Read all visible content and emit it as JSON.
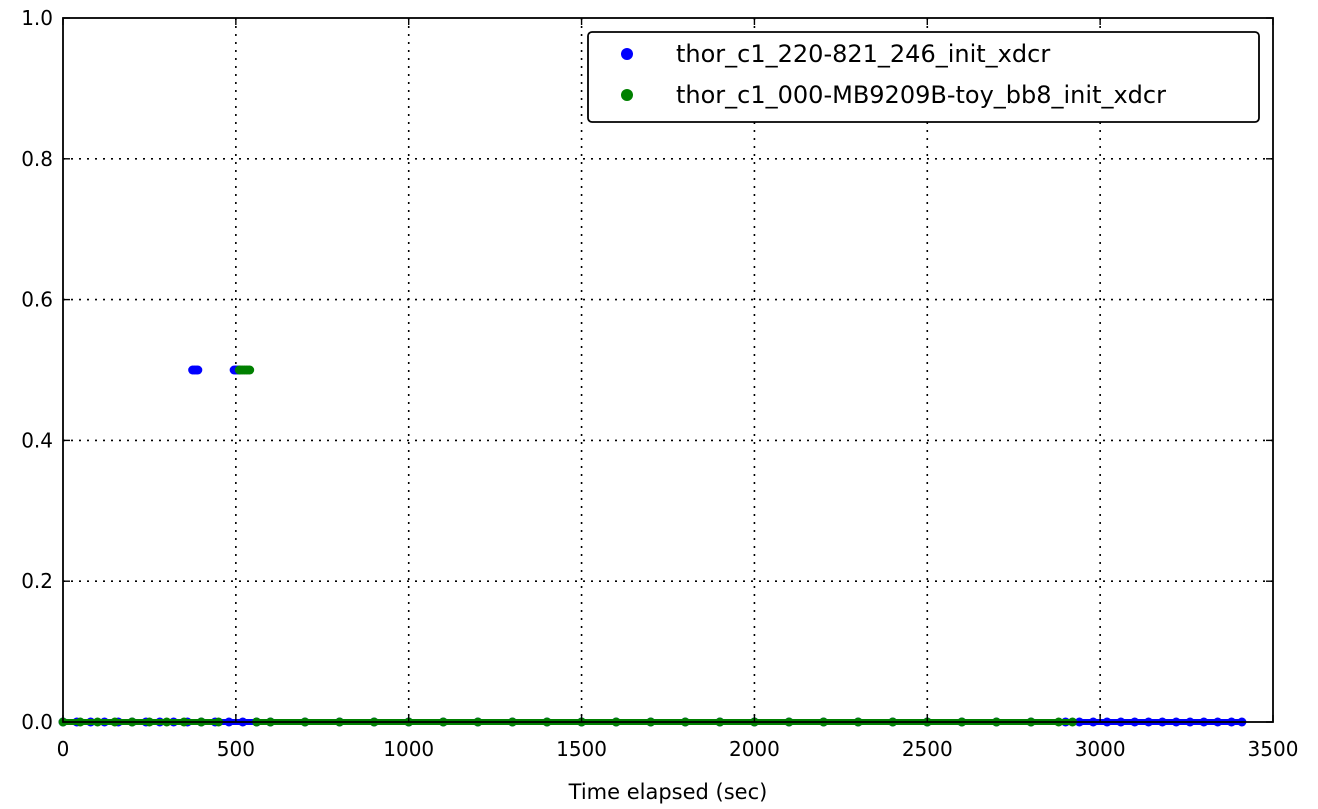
{
  "chart_data": {
    "type": "scatter",
    "title": "",
    "xlabel": "Time elapsed (sec)",
    "ylabel": "",
    "xlim": [
      0,
      3500
    ],
    "ylim": [
      0,
      1.0
    ],
    "grid": true,
    "legend_position": "top-right",
    "x_ticks": [
      0,
      500,
      1000,
      1500,
      2000,
      2500,
      3000,
      3500
    ],
    "x_tick_labels": [
      "0",
      "500",
      "1000",
      "1500",
      "2000",
      "2500",
      "3000",
      "3500"
    ],
    "y_ticks": [
      0.0,
      0.2,
      0.4,
      0.6,
      0.8,
      1.0
    ],
    "y_tick_labels": [
      "0.0",
      "0.2",
      "0.4",
      "0.6",
      "0.8",
      "1.0"
    ],
    "series": [
      {
        "name": "thor_c1_220-821_246_init_xdcr",
        "color": "#0000ff",
        "points": [
          [
            0,
            0
          ],
          [
            40,
            0
          ],
          [
            80,
            0
          ],
          [
            120,
            0
          ],
          [
            160,
            0
          ],
          [
            200,
            0
          ],
          [
            240,
            0
          ],
          [
            280,
            0
          ],
          [
            320,
            0
          ],
          [
            360,
            0
          ],
          [
            375,
            0.5
          ],
          [
            380,
            0.5
          ],
          [
            385,
            0.5
          ],
          [
            390,
            0.5
          ],
          [
            495,
            0.5
          ],
          [
            500,
            0.5
          ],
          [
            505,
            0.5
          ],
          [
            510,
            0.5
          ],
          [
            400,
            0
          ],
          [
            440,
            0
          ],
          [
            480,
            0
          ],
          [
            520,
            0
          ],
          [
            560,
            0
          ],
          [
            600,
            0
          ],
          [
            700,
            0
          ],
          [
            800,
            0
          ],
          [
            900,
            0
          ],
          [
            1000,
            0
          ],
          [
            1100,
            0
          ],
          [
            1200,
            0
          ],
          [
            1300,
            0
          ],
          [
            1400,
            0
          ],
          [
            1500,
            0
          ],
          [
            1600,
            0
          ],
          [
            1700,
            0
          ],
          [
            1800,
            0
          ],
          [
            1900,
            0
          ],
          [
            2000,
            0
          ],
          [
            2100,
            0
          ],
          [
            2200,
            0
          ],
          [
            2300,
            0
          ],
          [
            2400,
            0
          ],
          [
            2500,
            0
          ],
          [
            2600,
            0
          ],
          [
            2700,
            0
          ],
          [
            2800,
            0
          ],
          [
            2900,
            0
          ],
          [
            2940,
            0
          ],
          [
            2980,
            0
          ],
          [
            3020,
            0
          ],
          [
            3060,
            0
          ],
          [
            3100,
            0
          ],
          [
            3140,
            0
          ],
          [
            3180,
            0
          ],
          [
            3220,
            0
          ],
          [
            3260,
            0
          ],
          [
            3300,
            0
          ],
          [
            3340,
            0
          ],
          [
            3380,
            0
          ],
          [
            3410,
            0
          ]
        ]
      },
      {
        "name": "thor_c1_000-MB9209B-toy_bb8_init_xdcr",
        "color": "#008000",
        "points": [
          [
            0,
            0
          ],
          [
            50,
            0
          ],
          [
            100,
            0
          ],
          [
            150,
            0
          ],
          [
            200,
            0
          ],
          [
            250,
            0
          ],
          [
            300,
            0
          ],
          [
            350,
            0
          ],
          [
            400,
            0
          ],
          [
            450,
            0
          ],
          [
            510,
            0.5
          ],
          [
            515,
            0.5
          ],
          [
            520,
            0.5
          ],
          [
            525,
            0.5
          ],
          [
            530,
            0.5
          ],
          [
            535,
            0.5
          ],
          [
            540,
            0.5
          ],
          [
            560,
            0
          ],
          [
            600,
            0
          ],
          [
            700,
            0
          ],
          [
            800,
            0
          ],
          [
            900,
            0
          ],
          [
            1000,
            0
          ],
          [
            1100,
            0
          ],
          [
            1200,
            0
          ],
          [
            1300,
            0
          ],
          [
            1400,
            0
          ],
          [
            1500,
            0
          ],
          [
            1600,
            0
          ],
          [
            1700,
            0
          ],
          [
            1800,
            0
          ],
          [
            1900,
            0
          ],
          [
            2000,
            0
          ],
          [
            2100,
            0
          ],
          [
            2200,
            0
          ],
          [
            2300,
            0
          ],
          [
            2400,
            0
          ],
          [
            2500,
            0
          ],
          [
            2600,
            0
          ],
          [
            2700,
            0
          ],
          [
            2800,
            0
          ],
          [
            2880,
            0
          ],
          [
            2920,
            0
          ]
        ]
      }
    ]
  }
}
